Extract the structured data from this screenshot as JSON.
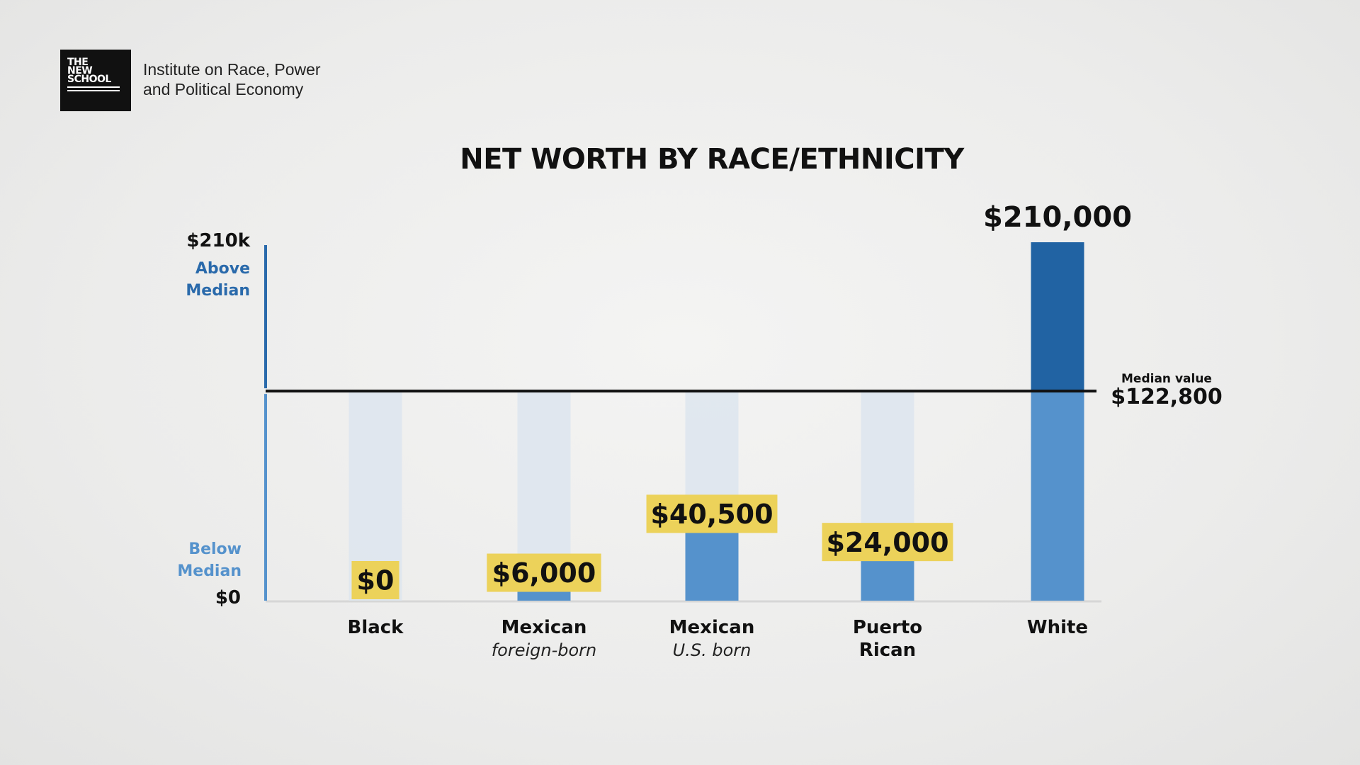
{
  "branding": {
    "logo_lines": [
      "THE",
      "NEW",
      "SCHOOL"
    ],
    "institute_line1": "Institute on Race, Power",
    "institute_line2": "and Political Economy"
  },
  "chart_data": {
    "type": "bar",
    "title": "NET WORTH BY RACE/ETHNICITY",
    "categories": [
      {
        "label_lines": [
          "Black"
        ],
        "sublabel": ""
      },
      {
        "label_lines": [
          "Mexican"
        ],
        "sublabel": "foreign-born"
      },
      {
        "label_lines": [
          "Mexican"
        ],
        "sublabel": "U.S. born"
      },
      {
        "label_lines": [
          "Puerto",
          "Rican"
        ],
        "sublabel": ""
      },
      {
        "label_lines": [
          "White"
        ],
        "sublabel": ""
      }
    ],
    "values": [
      0,
      6000,
      40500,
      24000,
      210000
    ],
    "value_labels": [
      "$0",
      "$6,000",
      "$40,500",
      "$24,000",
      "$210,000"
    ],
    "ylim": [
      0,
      210000
    ],
    "y_top_label": "$210k",
    "y_bottom_label": "$0",
    "above_label_lines": [
      "Above",
      "Median"
    ],
    "below_label_lines": [
      "Below",
      "Median"
    ],
    "median": {
      "value": 122800,
      "caption": "Median value",
      "label": "$122,800"
    },
    "colors": {
      "bar": "#5592cc",
      "bar_above": "#2163a3",
      "ghost": "#dde5ee",
      "highlight": "#ecd25a",
      "axis_above": "#2a6aab",
      "axis_below": "#5592cc",
      "median_line": "#111111",
      "baseline": "#d6d6d6"
    }
  }
}
